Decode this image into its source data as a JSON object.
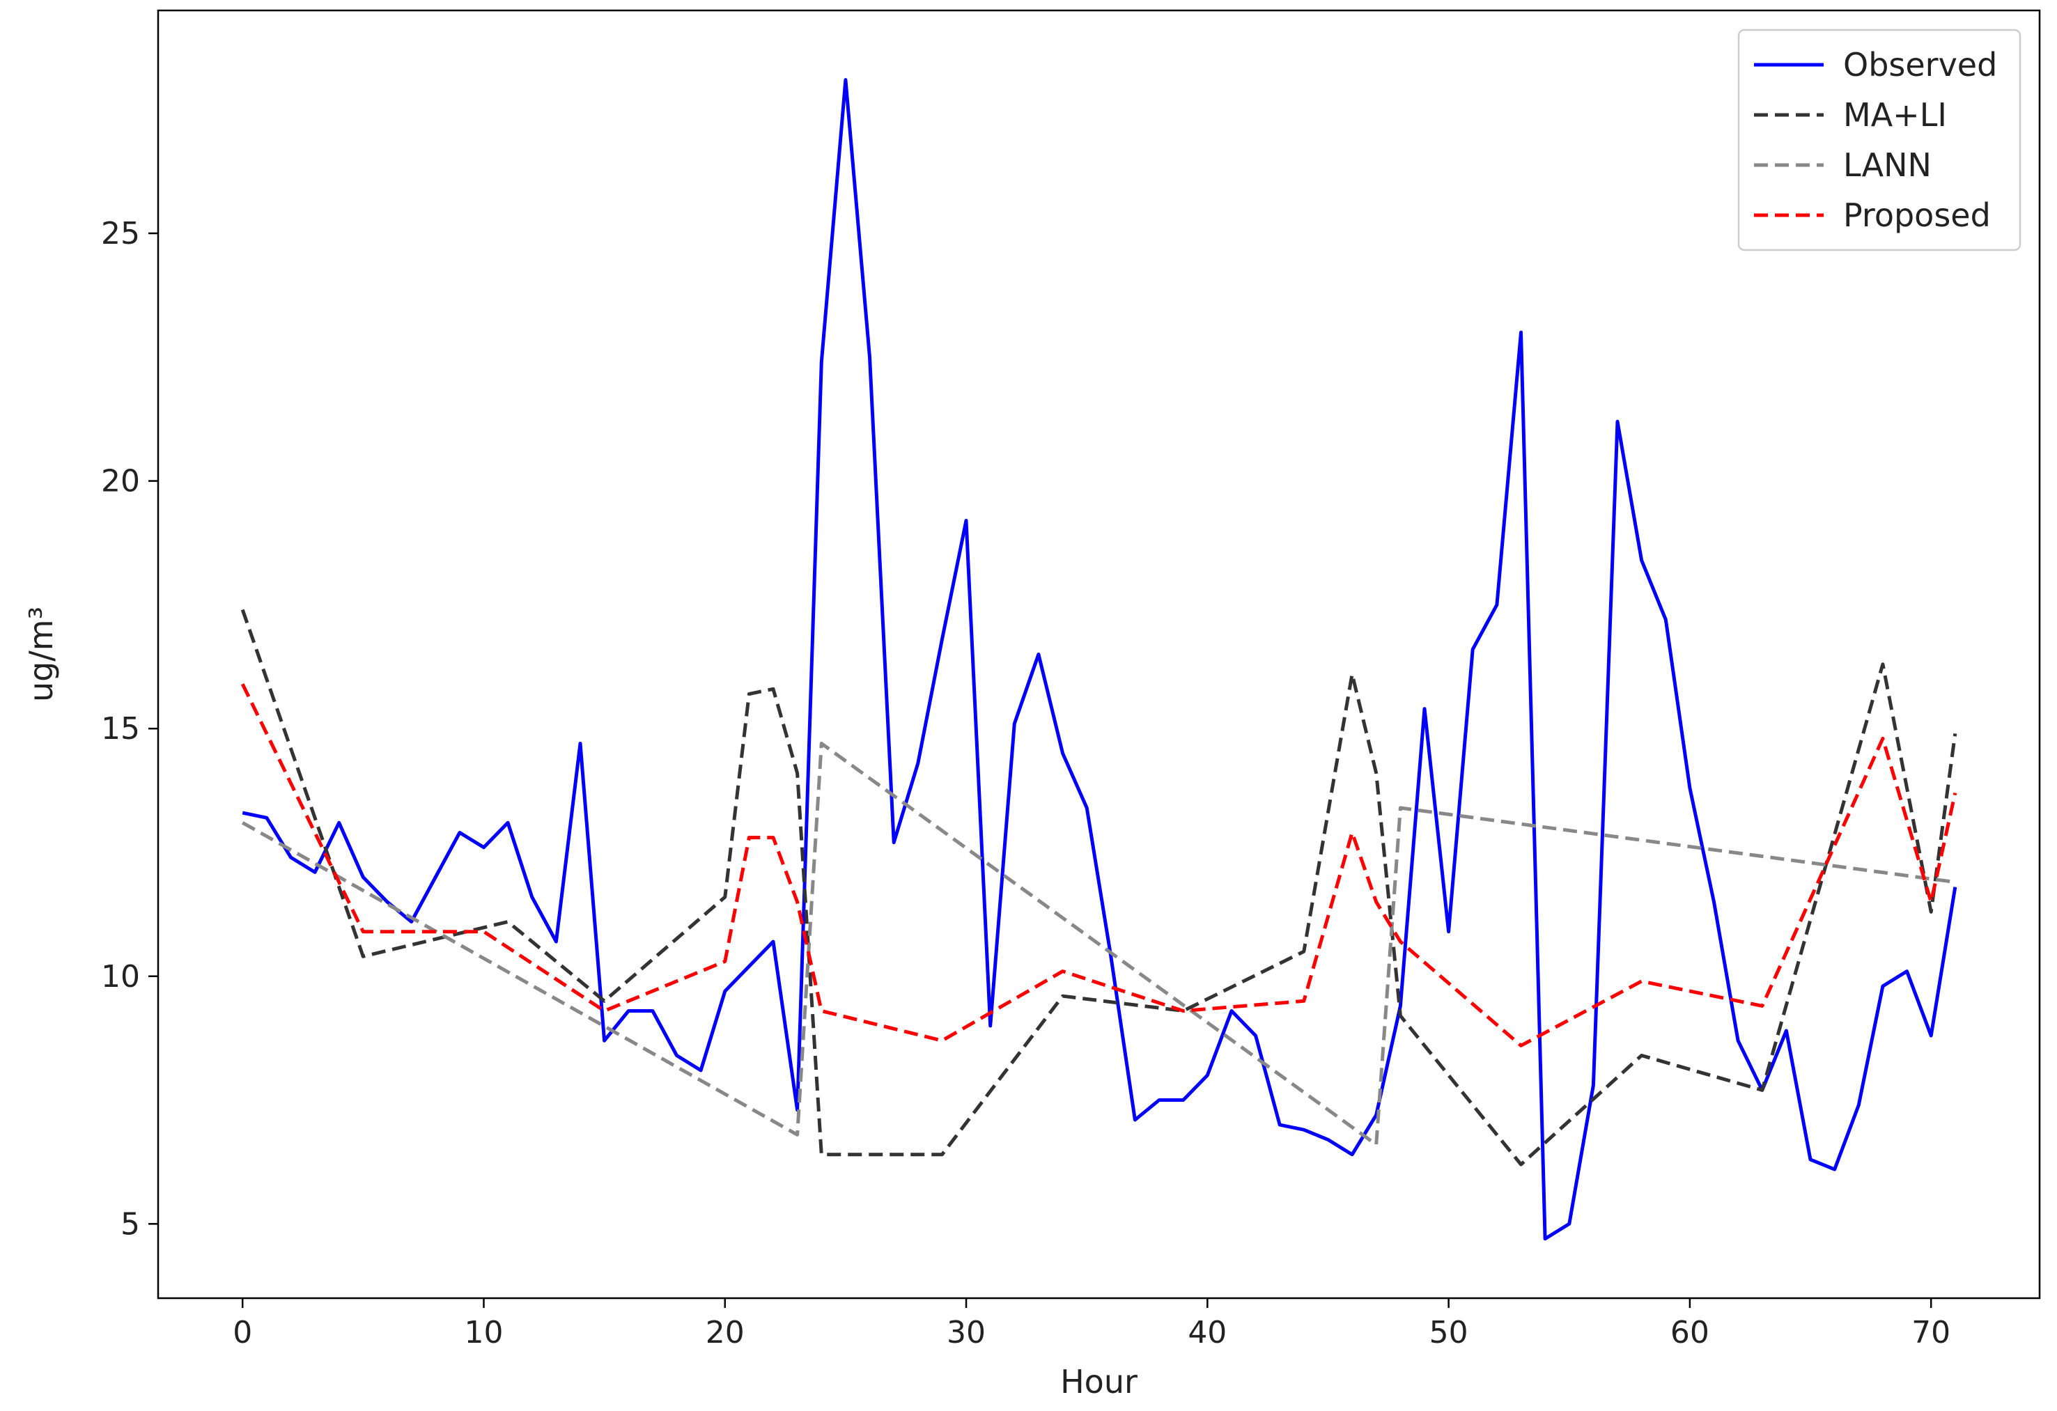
{
  "chart_data": {
    "type": "line",
    "xlabel": "Hour",
    "ylabel": "ug/m³",
    "xlim": [
      -3.5,
      74.5
    ],
    "ylim": [
      3.5,
      29.5
    ],
    "xticks": [
      0,
      10,
      20,
      30,
      40,
      50,
      60,
      70
    ],
    "yticks": [
      5,
      10,
      15,
      20,
      25
    ],
    "grid": false,
    "legend_position": "top-right",
    "series": [
      {
        "name": "Observed",
        "color": "#0000ff",
        "dash": "solid",
        "x": [
          0,
          1,
          2,
          3,
          4,
          5,
          6,
          7,
          8,
          9,
          10,
          11,
          12,
          13,
          14,
          15,
          16,
          17,
          18,
          19,
          20,
          21,
          22,
          23,
          24,
          25,
          26,
          27,
          28,
          29,
          30,
          31,
          32,
          33,
          34,
          35,
          36,
          37,
          38,
          39,
          40,
          41,
          42,
          43,
          44,
          45,
          46,
          47,
          48,
          49,
          50,
          51,
          52,
          53,
          54,
          55,
          56,
          57,
          58,
          59,
          60,
          61,
          62,
          63,
          64,
          65,
          66,
          67,
          68,
          69,
          70,
          71
        ],
        "y": [
          13.3,
          13.2,
          12.4,
          12.1,
          13.1,
          12.0,
          11.5,
          11.1,
          12.0,
          12.9,
          12.6,
          13.1,
          11.6,
          10.7,
          14.7,
          8.7,
          9.3,
          9.3,
          8.4,
          8.1,
          9.7,
          10.2,
          10.7,
          7.3,
          22.4,
          28.1,
          22.5,
          12.7,
          14.3,
          16.8,
          19.2,
          9.0,
          15.1,
          16.5,
          14.5,
          13.4,
          10.4,
          7.1,
          7.5,
          7.5,
          8.0,
          9.3,
          8.8,
          7.0,
          6.9,
          6.7,
          6.4,
          7.2,
          9.4,
          15.4,
          10.9,
          16.6,
          17.5,
          23.0,
          4.7,
          5.0,
          7.8,
          21.2,
          18.4,
          17.2,
          13.8,
          11.5,
          8.7,
          7.7,
          8.9,
          6.3,
          6.1,
          7.4,
          9.8,
          10.1,
          8.8,
          11.8
        ]
      },
      {
        "name": "MA+LI",
        "color": "#333333",
        "dash": "dashed",
        "x": [
          0,
          5,
          11,
          15,
          20,
          21,
          22,
          23,
          24,
          29,
          34,
          39,
          44,
          46,
          47,
          48,
          53,
          58,
          63,
          68,
          70,
          71
        ],
        "y": [
          17.4,
          10.4,
          11.1,
          9.5,
          11.6,
          15.7,
          15.8,
          14.1,
          6.4,
          6.4,
          9.6,
          9.3,
          10.5,
          16.1,
          14.1,
          9.2,
          6.2,
          8.4,
          7.7,
          16.3,
          11.3,
          14.9
        ]
      },
      {
        "name": "LANN",
        "color": "#888888",
        "dash": "dashed",
        "x": [
          0,
          23,
          24,
          47,
          48,
          71
        ],
        "y": [
          13.1,
          6.8,
          14.7,
          6.6,
          13.4,
          11.9
        ]
      },
      {
        "name": "Proposed",
        "color": "#ff0000",
        "dash": "dashed",
        "x": [
          0,
          5,
          10,
          15,
          20,
          21,
          22,
          23,
          24,
          29,
          34,
          39,
          44,
          46,
          47,
          48,
          53,
          58,
          63,
          68,
          70,
          71
        ],
        "y": [
          15.9,
          10.9,
          10.9,
          9.3,
          10.3,
          12.8,
          12.8,
          11.5,
          9.3,
          8.7,
          10.1,
          9.3,
          9.5,
          12.9,
          11.5,
          10.7,
          8.6,
          9.9,
          9.4,
          14.8,
          11.5,
          13.7
        ]
      }
    ]
  }
}
